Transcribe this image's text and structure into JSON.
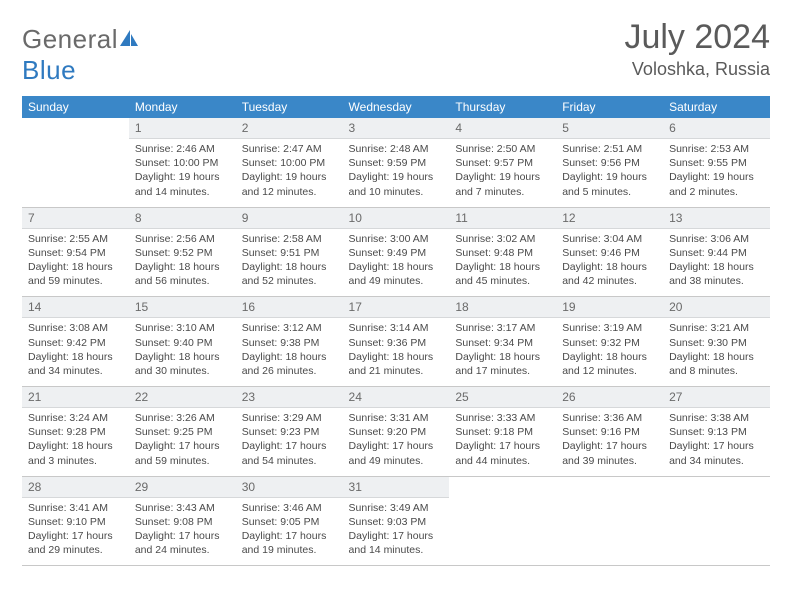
{
  "brand": {
    "name_a": "General",
    "name_b": "Blue"
  },
  "header": {
    "title": "July 2024",
    "location": "Voloshka, Russia"
  },
  "colors": {
    "header_bg": "#3a87c8",
    "header_text": "#ffffff",
    "daynum_bg": "#eef0f2",
    "grid_line": "#c8c8c8",
    "text": "#4a4a4a",
    "brand_gray": "#6a6a6a",
    "brand_blue": "#2f7ac0"
  },
  "typography": {
    "title_fontsize": 34,
    "location_fontsize": 18,
    "dayhead_fontsize": 12,
    "cell_fontsize": 10.5
  },
  "day_headers": [
    "Sunday",
    "Monday",
    "Tuesday",
    "Wednesday",
    "Thursday",
    "Friday",
    "Saturday"
  ],
  "weeks": [
    [
      null,
      {
        "n": "1",
        "sr": "2:46 AM",
        "ss": "10:00 PM",
        "dl": "19 hours and 14 minutes"
      },
      {
        "n": "2",
        "sr": "2:47 AM",
        "ss": "10:00 PM",
        "dl": "19 hours and 12 minutes"
      },
      {
        "n": "3",
        "sr": "2:48 AM",
        "ss": "9:59 PM",
        "dl": "19 hours and 10 minutes"
      },
      {
        "n": "4",
        "sr": "2:50 AM",
        "ss": "9:57 PM",
        "dl": "19 hours and 7 minutes"
      },
      {
        "n": "5",
        "sr": "2:51 AM",
        "ss": "9:56 PM",
        "dl": "19 hours and 5 minutes"
      },
      {
        "n": "6",
        "sr": "2:53 AM",
        "ss": "9:55 PM",
        "dl": "19 hours and 2 minutes"
      }
    ],
    [
      {
        "n": "7",
        "sr": "2:55 AM",
        "ss": "9:54 PM",
        "dl": "18 hours and 59 minutes"
      },
      {
        "n": "8",
        "sr": "2:56 AM",
        "ss": "9:52 PM",
        "dl": "18 hours and 56 minutes"
      },
      {
        "n": "9",
        "sr": "2:58 AM",
        "ss": "9:51 PM",
        "dl": "18 hours and 52 minutes"
      },
      {
        "n": "10",
        "sr": "3:00 AM",
        "ss": "9:49 PM",
        "dl": "18 hours and 49 minutes"
      },
      {
        "n": "11",
        "sr": "3:02 AM",
        "ss": "9:48 PM",
        "dl": "18 hours and 45 minutes"
      },
      {
        "n": "12",
        "sr": "3:04 AM",
        "ss": "9:46 PM",
        "dl": "18 hours and 42 minutes"
      },
      {
        "n": "13",
        "sr": "3:06 AM",
        "ss": "9:44 PM",
        "dl": "18 hours and 38 minutes"
      }
    ],
    [
      {
        "n": "14",
        "sr": "3:08 AM",
        "ss": "9:42 PM",
        "dl": "18 hours and 34 minutes"
      },
      {
        "n": "15",
        "sr": "3:10 AM",
        "ss": "9:40 PM",
        "dl": "18 hours and 30 minutes"
      },
      {
        "n": "16",
        "sr": "3:12 AM",
        "ss": "9:38 PM",
        "dl": "18 hours and 26 minutes"
      },
      {
        "n": "17",
        "sr": "3:14 AM",
        "ss": "9:36 PM",
        "dl": "18 hours and 21 minutes"
      },
      {
        "n": "18",
        "sr": "3:17 AM",
        "ss": "9:34 PM",
        "dl": "18 hours and 17 minutes"
      },
      {
        "n": "19",
        "sr": "3:19 AM",
        "ss": "9:32 PM",
        "dl": "18 hours and 12 minutes"
      },
      {
        "n": "20",
        "sr": "3:21 AM",
        "ss": "9:30 PM",
        "dl": "18 hours and 8 minutes"
      }
    ],
    [
      {
        "n": "21",
        "sr": "3:24 AM",
        "ss": "9:28 PM",
        "dl": "18 hours and 3 minutes"
      },
      {
        "n": "22",
        "sr": "3:26 AM",
        "ss": "9:25 PM",
        "dl": "17 hours and 59 minutes"
      },
      {
        "n": "23",
        "sr": "3:29 AM",
        "ss": "9:23 PM",
        "dl": "17 hours and 54 minutes"
      },
      {
        "n": "24",
        "sr": "3:31 AM",
        "ss": "9:20 PM",
        "dl": "17 hours and 49 minutes"
      },
      {
        "n": "25",
        "sr": "3:33 AM",
        "ss": "9:18 PM",
        "dl": "17 hours and 44 minutes"
      },
      {
        "n": "26",
        "sr": "3:36 AM",
        "ss": "9:16 PM",
        "dl": "17 hours and 39 minutes"
      },
      {
        "n": "27",
        "sr": "3:38 AM",
        "ss": "9:13 PM",
        "dl": "17 hours and 34 minutes"
      }
    ],
    [
      {
        "n": "28",
        "sr": "3:41 AM",
        "ss": "9:10 PM",
        "dl": "17 hours and 29 minutes"
      },
      {
        "n": "29",
        "sr": "3:43 AM",
        "ss": "9:08 PM",
        "dl": "17 hours and 24 minutes"
      },
      {
        "n": "30",
        "sr": "3:46 AM",
        "ss": "9:05 PM",
        "dl": "17 hours and 19 minutes"
      },
      {
        "n": "31",
        "sr": "3:49 AM",
        "ss": "9:03 PM",
        "dl": "17 hours and 14 minutes"
      },
      null,
      null,
      null
    ]
  ],
  "labels": {
    "sunrise": "Sunrise:",
    "sunset": "Sunset:",
    "daylight": "Daylight:"
  }
}
